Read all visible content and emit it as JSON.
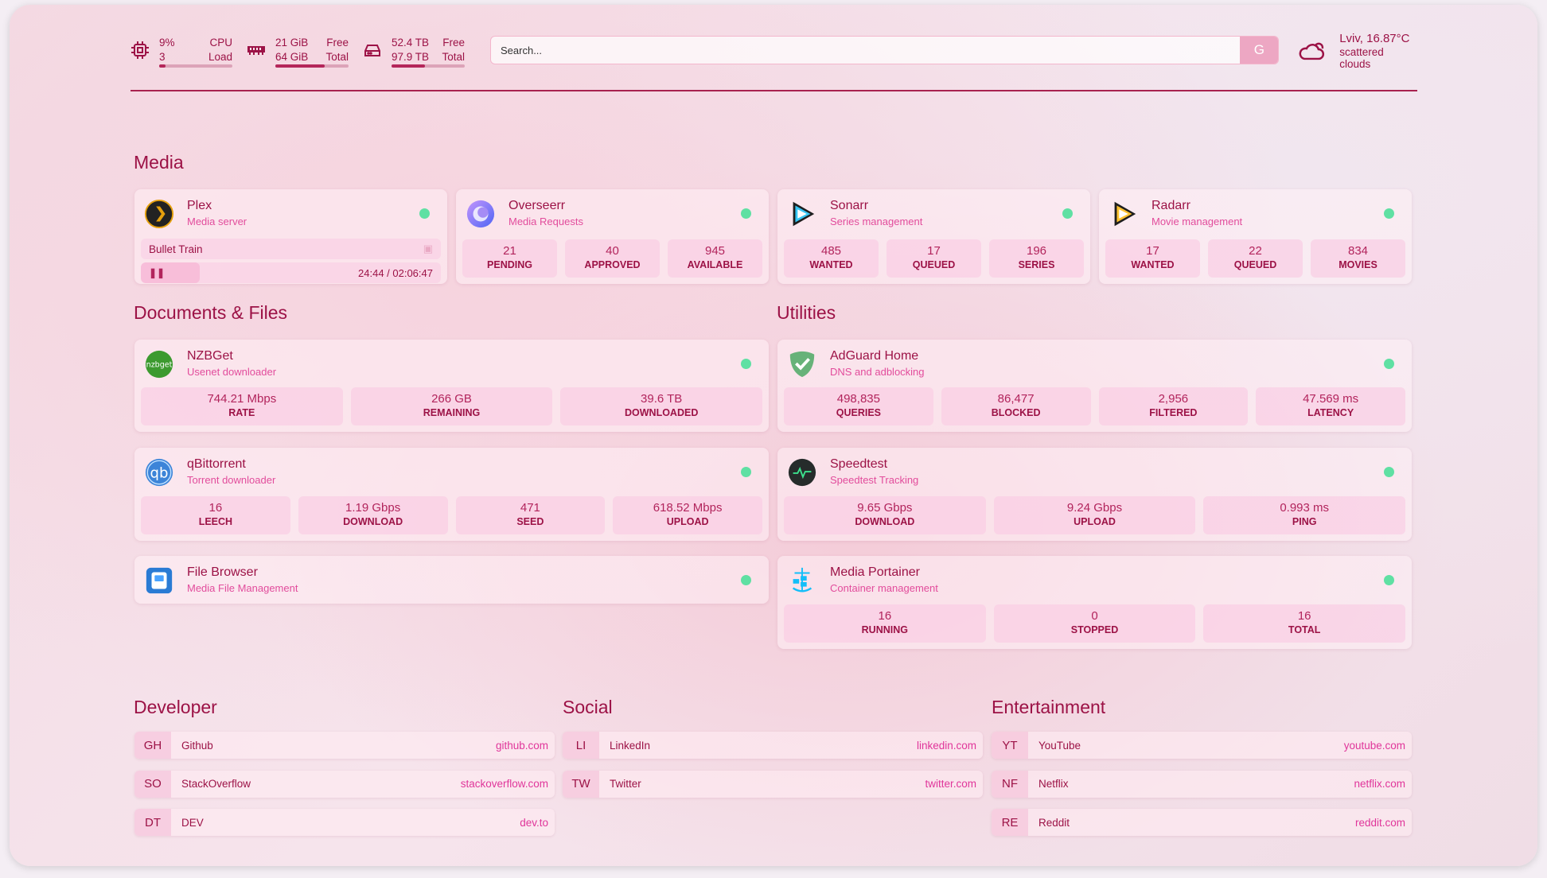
{
  "header": {
    "cpu": {
      "icon": "cpu-icon",
      "value": "9%",
      "sub": "3",
      "label1": "CPU",
      "label2": "Load",
      "percent": 9
    },
    "memory": {
      "icon": "memory-icon",
      "value": "21 GiB",
      "sub": "64 GiB",
      "label1": "Free",
      "label2": "Total",
      "percent": 67
    },
    "disk": {
      "icon": "disk-icon",
      "value": "52.4 TB",
      "sub": "97.9 TB",
      "label1": "Free",
      "label2": "Total",
      "percent": 46
    },
    "search": {
      "placeholder": "Search...",
      "button": "G"
    },
    "weather": {
      "icon": "cloud-sun-icon",
      "location": "Lviv, 16.87°C",
      "description": "scattered clouds"
    }
  },
  "sections": {
    "media": "Media",
    "documents": "Documents & Files",
    "utilities": "Utilities",
    "developer": "Developer",
    "social": "Social",
    "entertainment": "Entertainment"
  },
  "services": {
    "plex": {
      "name": "Plex",
      "desc": "Media server",
      "icon": "plex-icon",
      "now_playing": {
        "title": "Bullet Train",
        "time": "24:44 / 02:06:47",
        "progress": 0.195
      }
    },
    "overseerr": {
      "name": "Overseerr",
      "desc": "Media Requests",
      "icon": "overseerr-icon",
      "stats": [
        {
          "v": "21",
          "k": "PENDING"
        },
        {
          "v": "40",
          "k": "APPROVED"
        },
        {
          "v": "945",
          "k": "AVAILABLE"
        }
      ]
    },
    "sonarr": {
      "name": "Sonarr",
      "desc": "Series management",
      "icon": "sonarr-icon",
      "stats": [
        {
          "v": "485",
          "k": "WANTED"
        },
        {
          "v": "17",
          "k": "QUEUED"
        },
        {
          "v": "196",
          "k": "SERIES"
        }
      ]
    },
    "radarr": {
      "name": "Radarr",
      "desc": "Movie management",
      "icon": "radarr-icon",
      "stats": [
        {
          "v": "17",
          "k": "WANTED"
        },
        {
          "v": "22",
          "k": "QUEUED"
        },
        {
          "v": "834",
          "k": "MOVIES"
        }
      ]
    },
    "nzbget": {
      "name": "NZBGet",
      "desc": "Usenet downloader",
      "icon": "nzbget-icon",
      "icon_text": "nzbget",
      "stats": [
        {
          "v": "744.21 Mbps",
          "k": "RATE"
        },
        {
          "v": "266 GB",
          "k": "REMAINING"
        },
        {
          "v": "39.6 TB",
          "k": "DOWNLOADED"
        }
      ]
    },
    "qbittorrent": {
      "name": "qBittorrent",
      "desc": "Torrent downloader",
      "icon": "qbittorrent-icon",
      "icon_text": "qb",
      "stats": [
        {
          "v": "16",
          "k": "LEECH"
        },
        {
          "v": "1.19 Gbps",
          "k": "DOWNLOAD"
        },
        {
          "v": "471",
          "k": "SEED"
        },
        {
          "v": "618.52 Mbps",
          "k": "UPLOAD"
        }
      ]
    },
    "filebrowser": {
      "name": "File Browser",
      "desc": "Media File Management",
      "icon": "file-browser-icon"
    },
    "adguard": {
      "name": "AdGuard Home",
      "desc": "DNS and adblocking",
      "icon": "adguard-shield-icon",
      "stats": [
        {
          "v": "498,835",
          "k": "QUERIES"
        },
        {
          "v": "86,477",
          "k": "BLOCKED"
        },
        {
          "v": "2,956",
          "k": "FILTERED"
        },
        {
          "v": "47.569 ms",
          "k": "LATENCY"
        }
      ]
    },
    "speedtest": {
      "name": "Speedtest",
      "desc": "Speedtest Tracking",
      "icon": "speedtest-pulse-icon",
      "stats": [
        {
          "v": "9.65 Gbps",
          "k": "DOWNLOAD"
        },
        {
          "v": "9.24 Gbps",
          "k": "UPLOAD"
        },
        {
          "v": "0.993 ms",
          "k": "PING"
        }
      ]
    },
    "portainer": {
      "name": "Media Portainer",
      "desc": "Container management",
      "icon": "portainer-icon",
      "stats": [
        {
          "v": "16",
          "k": "RUNNING"
        },
        {
          "v": "0",
          "k": "STOPPED"
        },
        {
          "v": "16",
          "k": "TOTAL"
        }
      ]
    }
  },
  "bookmarks": {
    "developer": [
      {
        "abbr": "GH",
        "name": "Github",
        "url": "github.com"
      },
      {
        "abbr": "SO",
        "name": "StackOverflow",
        "url": "stackoverflow.com"
      },
      {
        "abbr": "DT",
        "name": "DEV",
        "url": "dev.to"
      }
    ],
    "social": [
      {
        "abbr": "LI",
        "name": "LinkedIn",
        "url": "linkedin.com"
      },
      {
        "abbr": "TW",
        "name": "Twitter",
        "url": "twitter.com"
      }
    ],
    "entertainment": [
      {
        "abbr": "YT",
        "name": "YouTube",
        "url": "youtube.com"
      },
      {
        "abbr": "NF",
        "name": "Netflix",
        "url": "netflix.com"
      },
      {
        "abbr": "RE",
        "name": "Reddit",
        "url": "reddit.com"
      }
    ]
  },
  "colors": {
    "accent": "#9c1246",
    "description": "#e24c9c",
    "status_online": "#5fe0a3",
    "stat_bg": "#f9cde4"
  }
}
